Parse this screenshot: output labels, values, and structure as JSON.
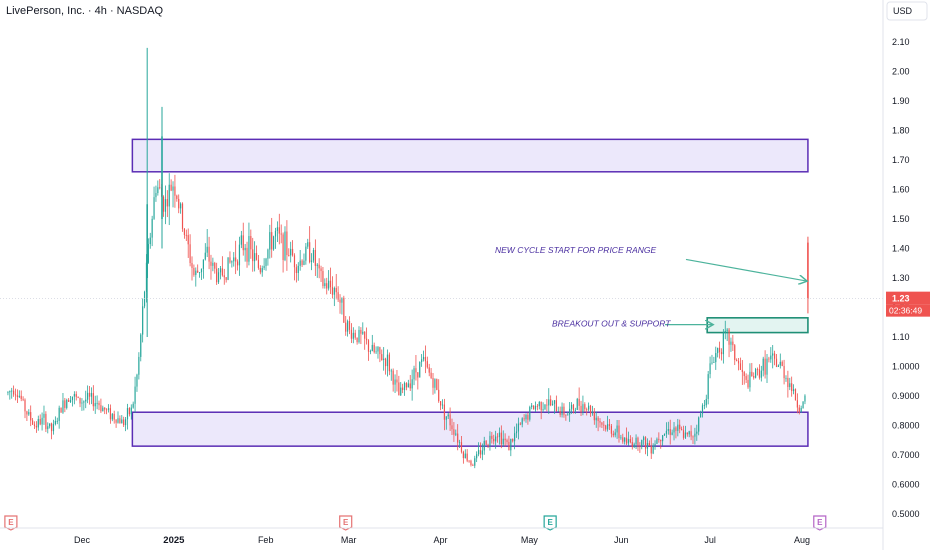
{
  "header": {
    "title": "LivePerson, Inc. · 4h · NASDAQ",
    "currency": "USD"
  },
  "colors": {
    "up": "#26a69a",
    "down": "#ef5350",
    "zone_fill": "#ece8fb",
    "zone_stroke": "#5b2db5",
    "breakout_fill": "#e3f4f1",
    "breakout_stroke": "#1f8f76",
    "arrow": "#4cb39c",
    "annotation": "#4a2fa0",
    "price_line": "#ef5350",
    "earnings_red": "#e57373",
    "earnings_green": "#26a69a",
    "earnings_purple": "#b565c6"
  },
  "current_price": {
    "value": "1.23",
    "countdown": "02:36:49"
  },
  "annotations": {
    "new_cycle": "NEW CYCLE START FOR PRICE RANGE",
    "breakout": "BREAKOUT OUT & SUPPORT"
  },
  "earnings_markers": [
    {
      "date": "2024-11-07",
      "label": "E",
      "color": "red"
    },
    {
      "date": "2025-02-28",
      "label": "E",
      "color": "red"
    },
    {
      "date": "2025-05-08",
      "label": "E",
      "color": "green"
    },
    {
      "date": "2025-08-07",
      "label": "E",
      "color": "purple"
    }
  ],
  "chart_data": {
    "type": "candlestick",
    "title": "LivePerson, Inc. · 4h · NASDAQ",
    "ylim": [
      0.47,
      2.18
    ],
    "y_ticks": [
      "2.10",
      "2.00",
      "1.90",
      "1.80",
      "1.70",
      "1.60",
      "1.50",
      "1.40",
      "1.30",
      "1.20",
      "1.10",
      "1.0000",
      "0.9000",
      "0.8000",
      "0.7000",
      "0.6000",
      "0.5000"
    ],
    "x_ticks": [
      {
        "label": "Dec",
        "date": "2024-12-01"
      },
      {
        "label": "2025",
        "date": "2025-01-01",
        "bold": true
      },
      {
        "label": "Feb",
        "date": "2025-02-01"
      },
      {
        "label": "Mar",
        "date": "2025-03-01"
      },
      {
        "label": "Apr",
        "date": "2025-04-01"
      },
      {
        "label": "May",
        "date": "2025-05-01"
      },
      {
        "label": "Jun",
        "date": "2025-06-01"
      },
      {
        "label": "Jul",
        "date": "2025-07-01"
      },
      {
        "label": "Aug",
        "date": "2025-08-01"
      }
    ],
    "x_range": [
      "2024-11-06",
      "2025-08-28"
    ],
    "zones": [
      {
        "name": "upper",
        "x_start": "2024-12-18",
        "x_end": "2025-08-03",
        "y_low": 1.66,
        "y_high": 1.77
      },
      {
        "name": "lower",
        "x_start": "2024-12-18",
        "x_end": "2025-08-03",
        "y_low": 0.73,
        "y_high": 0.845
      },
      {
        "name": "breakout",
        "x_start": "2025-06-30",
        "x_end": "2025-08-03",
        "y_low": 1.115,
        "y_high": 1.165
      }
    ],
    "price_path": [
      [
        "2024-11-06",
        0.91
      ],
      [
        "2024-11-08",
        0.93
      ],
      [
        "2024-11-10",
        0.9
      ],
      [
        "2024-11-12",
        0.85
      ],
      [
        "2024-11-15",
        0.8
      ],
      [
        "2024-11-18",
        0.82
      ],
      [
        "2024-11-21",
        0.78
      ],
      [
        "2024-11-24",
        0.86
      ],
      [
        "2024-11-27",
        0.91
      ],
      [
        "2024-11-30",
        0.88
      ],
      [
        "2024-12-03",
        0.89
      ],
      [
        "2024-12-06",
        0.88
      ],
      [
        "2024-12-09",
        0.85
      ],
      [
        "2024-12-12",
        0.83
      ],
      [
        "2024-12-15",
        0.81
      ],
      [
        "2024-12-18",
        0.86
      ],
      [
        "2024-12-20",
        1.0
      ],
      [
        "2024-12-22",
        1.25
      ],
      [
        "2024-12-24",
        1.45
      ],
      [
        "2024-12-26",
        1.62
      ],
      [
        "2024-12-29",
        1.55
      ],
      [
        "2025-01-01",
        1.63
      ],
      [
        "2025-01-04",
        1.48
      ],
      [
        "2025-01-08",
        1.3
      ],
      [
        "2025-01-12",
        1.38
      ],
      [
        "2025-01-16",
        1.3
      ],
      [
        "2025-01-20",
        1.35
      ],
      [
        "2025-01-25",
        1.42
      ],
      [
        "2025-01-30",
        1.33
      ],
      [
        "2025-02-04",
        1.45
      ],
      [
        "2025-02-08",
        1.4
      ],
      [
        "2025-02-12",
        1.35
      ],
      [
        "2025-02-16",
        1.4
      ],
      [
        "2025-02-20",
        1.28
      ],
      [
        "2025-02-25",
        1.26
      ],
      [
        "2025-03-01",
        1.12
      ],
      [
        "2025-03-05",
        1.1
      ],
      [
        "2025-03-09",
        1.05
      ],
      [
        "2025-03-14",
        1.02
      ],
      [
        "2025-03-18",
        0.9
      ],
      [
        "2025-03-22",
        0.96
      ],
      [
        "2025-03-26",
        1.02
      ],
      [
        "2025-03-30",
        0.94
      ],
      [
        "2025-04-02",
        0.85
      ],
      [
        "2025-04-06",
        0.78
      ],
      [
        "2025-04-09",
        0.7
      ],
      [
        "2025-04-12",
        0.67
      ],
      [
        "2025-04-16",
        0.74
      ],
      [
        "2025-04-20",
        0.78
      ],
      [
        "2025-04-24",
        0.73
      ],
      [
        "2025-04-28",
        0.8
      ],
      [
        "2025-05-02",
        0.86
      ],
      [
        "2025-05-06",
        0.88
      ],
      [
        "2025-05-10",
        0.86
      ],
      [
        "2025-05-14",
        0.84
      ],
      [
        "2025-05-18",
        0.88
      ],
      [
        "2025-05-22",
        0.85
      ],
      [
        "2025-05-26",
        0.8
      ],
      [
        "2025-05-30",
        0.78
      ],
      [
        "2025-06-03",
        0.74
      ],
      [
        "2025-06-07",
        0.75
      ],
      [
        "2025-06-11",
        0.73
      ],
      [
        "2025-06-15",
        0.78
      ],
      [
        "2025-06-19",
        0.79
      ],
      [
        "2025-06-23",
        0.76
      ],
      [
        "2025-06-26",
        0.78
      ],
      [
        "2025-06-29",
        0.88
      ],
      [
        "2025-07-01",
        1.0
      ],
      [
        "2025-07-04",
        1.07
      ],
      [
        "2025-07-07",
        1.1
      ],
      [
        "2025-07-10",
        1.02
      ],
      [
        "2025-07-13",
        0.94
      ],
      [
        "2025-07-17",
        0.98
      ],
      [
        "2025-07-21",
        1.02
      ],
      [
        "2025-07-25",
        1.0
      ],
      [
        "2025-07-28",
        0.94
      ],
      [
        "2025-07-31",
        0.86
      ],
      [
        "2025-08-02",
        0.88
      ]
    ],
    "spikes": [
      {
        "date": "2024-12-23",
        "high": 2.08,
        "low": 1.1,
        "open": 1.3,
        "close": 1.55
      },
      {
        "date": "2024-12-28",
        "high": 1.88,
        "low": 1.4,
        "open": 1.5,
        "close": 1.78
      },
      {
        "date": "2025-08-03",
        "high": 1.44,
        "low": 1.18,
        "open": 1.42,
        "close": 1.23
      }
    ]
  }
}
